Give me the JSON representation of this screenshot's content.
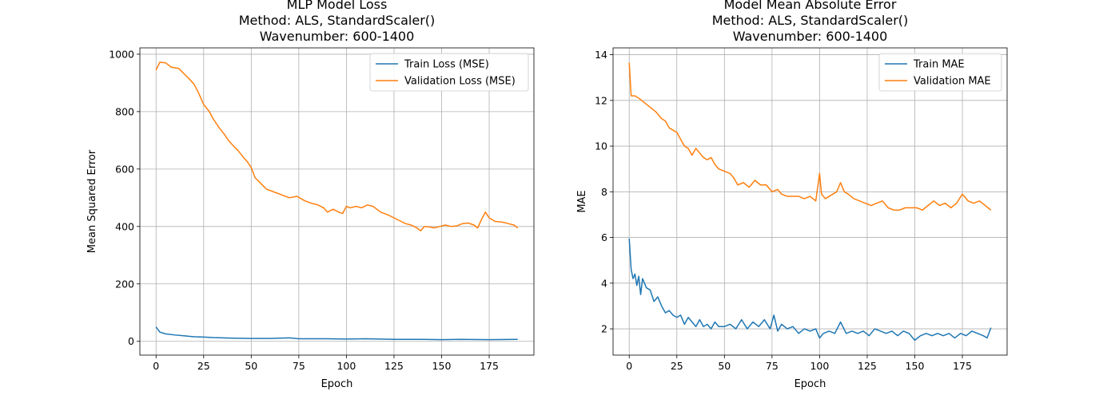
{
  "colors": {
    "train": "#1f77b4",
    "validation": "#ff7f0e",
    "grid": "#b0b0b0"
  },
  "chart_data": [
    {
      "type": "line",
      "title_lines": [
        "MLP Model Loss",
        "Method: ALS, StandardScaler()",
        "Wavenumber: 600-1400"
      ],
      "xlabel": "Epoch",
      "ylabel": "Mean Squared Error",
      "xlim": [
        -8.5,
        198.5
      ],
      "ylim": [
        -48,
        1022
      ],
      "xticks": [
        0,
        25,
        50,
        75,
        100,
        125,
        150,
        175
      ],
      "yticks": [
        0,
        200,
        400,
        600,
        800,
        1000
      ],
      "grid": true,
      "legend_position": "top-right",
      "series": [
        {
          "name": "Train Loss (MSE)",
          "key": "train",
          "points": [
            [
              0,
              50
            ],
            [
              2,
              32
            ],
            [
              5,
              26
            ],
            [
              10,
              22
            ],
            [
              15,
              19
            ],
            [
              20,
              16
            ],
            [
              25,
              15
            ],
            [
              30,
              13
            ],
            [
              40,
              11
            ],
            [
              50,
              10
            ],
            [
              60,
              10
            ],
            [
              70,
              12
            ],
            [
              75,
              9
            ],
            [
              90,
              9
            ],
            [
              100,
              8
            ],
            [
              110,
              9
            ],
            [
              125,
              7
            ],
            [
              140,
              7
            ],
            [
              150,
              6
            ],
            [
              160,
              7
            ],
            [
              175,
              6
            ],
            [
              190,
              7
            ]
          ]
        },
        {
          "name": "Validation Loss (MSE)",
          "key": "validation",
          "points": [
            [
              0,
              945
            ],
            [
              2,
              972
            ],
            [
              5,
              970
            ],
            [
              8,
              955
            ],
            [
              12,
              950
            ],
            [
              15,
              930
            ],
            [
              18,
              910
            ],
            [
              20,
              895
            ],
            [
              22,
              870
            ],
            [
              25,
              825
            ],
            [
              28,
              800
            ],
            [
              30,
              775
            ],
            [
              33,
              745
            ],
            [
              36,
              720
            ],
            [
              38,
              700
            ],
            [
              40,
              685
            ],
            [
              43,
              665
            ],
            [
              46,
              640
            ],
            [
              48,
              625
            ],
            [
              50,
              605
            ],
            [
              52,
              570
            ],
            [
              55,
              550
            ],
            [
              58,
              530
            ],
            [
              62,
              520
            ],
            [
              66,
              510
            ],
            [
              70,
              500
            ],
            [
              74,
              505
            ],
            [
              78,
              490
            ],
            [
              82,
              480
            ],
            [
              85,
              475
            ],
            [
              88,
              465
            ],
            [
              90,
              450
            ],
            [
              93,
              460
            ],
            [
              96,
              450
            ],
            [
              98,
              445
            ],
            [
              100,
              470
            ],
            [
              102,
              465
            ],
            [
              105,
              470
            ],
            [
              108,
              465
            ],
            [
              111,
              475
            ],
            [
              114,
              470
            ],
            [
              116,
              460
            ],
            [
              118,
              450
            ],
            [
              122,
              440
            ],
            [
              125,
              430
            ],
            [
              128,
              420
            ],
            [
              131,
              410
            ],
            [
              134,
              405
            ],
            [
              137,
              395
            ],
            [
              139,
              385
            ],
            [
              141,
              400
            ],
            [
              144,
              398
            ],
            [
              146,
              395
            ],
            [
              149,
              400
            ],
            [
              152,
              405
            ],
            [
              155,
              400
            ],
            [
              158,
              402
            ],
            [
              161,
              410
            ],
            [
              164,
              412
            ],
            [
              167,
              405
            ],
            [
              169,
              395
            ],
            [
              171,
              425
            ],
            [
              173,
              450
            ],
            [
              175,
              430
            ],
            [
              178,
              418
            ],
            [
              182,
              415
            ],
            [
              185,
              410
            ],
            [
              188,
              405
            ],
            [
              190,
              395
            ]
          ]
        }
      ]
    },
    {
      "type": "line",
      "title_lines": [
        "Model Mean Absolute Error",
        "Method: ALS, StandardScaler()",
        "Wavenumber: 600-1400"
      ],
      "xlabel": "Epoch",
      "ylabel": "MAE",
      "xlim": [
        -8.5,
        198.5
      ],
      "ylim": [
        0.85,
        14.3
      ],
      "xticks": [
        0,
        25,
        50,
        75,
        100,
        125,
        150,
        175
      ],
      "yticks": [
        2,
        4,
        6,
        8,
        10,
        12,
        14
      ],
      "grid": true,
      "legend_position": "top-right",
      "series": [
        {
          "name": "Train MAE",
          "key": "train",
          "points": [
            [
              0,
              5.95
            ],
            [
              1,
              4.6
            ],
            [
              2,
              4.2
            ],
            [
              3,
              4.4
            ],
            [
              4,
              3.9
            ],
            [
              5,
              4.3
            ],
            [
              6,
              3.5
            ],
            [
              7,
              4.2
            ],
            [
              9,
              3.8
            ],
            [
              11,
              3.7
            ],
            [
              13,
              3.2
            ],
            [
              15,
              3.4
            ],
            [
              17,
              3.0
            ],
            [
              19,
              2.7
            ],
            [
              21,
              2.8
            ],
            [
              23,
              2.6
            ],
            [
              25,
              2.5
            ],
            [
              27,
              2.6
            ],
            [
              29,
              2.2
            ],
            [
              31,
              2.5
            ],
            [
              33,
              2.3
            ],
            [
              35,
              2.1
            ],
            [
              37,
              2.4
            ],
            [
              39,
              2.1
            ],
            [
              41,
              2.2
            ],
            [
              43,
              2.0
            ],
            [
              45,
              2.3
            ],
            [
              47,
              2.1
            ],
            [
              50,
              2.1
            ],
            [
              53,
              2.2
            ],
            [
              56,
              2.0
            ],
            [
              59,
              2.4
            ],
            [
              62,
              2.0
            ],
            [
              65,
              2.3
            ],
            [
              68,
              2.1
            ],
            [
              71,
              2.4
            ],
            [
              74,
              2.0
            ],
            [
              76,
              2.6
            ],
            [
              78,
              1.9
            ],
            [
              80,
              2.2
            ],
            [
              83,
              2.0
            ],
            [
              86,
              2.1
            ],
            [
              89,
              1.8
            ],
            [
              92,
              2.0
            ],
            [
              95,
              1.9
            ],
            [
              98,
              2.0
            ],
            [
              100,
              1.6
            ],
            [
              102,
              1.8
            ],
            [
              105,
              1.9
            ],
            [
              108,
              1.8
            ],
            [
              111,
              2.3
            ],
            [
              114,
              1.8
            ],
            [
              117,
              1.9
            ],
            [
              120,
              1.8
            ],
            [
              123,
              1.9
            ],
            [
              126,
              1.7
            ],
            [
              129,
              2.0
            ],
            [
              132,
              1.9
            ],
            [
              135,
              1.8
            ],
            [
              138,
              1.9
            ],
            [
              141,
              1.7
            ],
            [
              144,
              1.9
            ],
            [
              147,
              1.8
            ],
            [
              150,
              1.5
            ],
            [
              153,
              1.7
            ],
            [
              156,
              1.8
            ],
            [
              159,
              1.7
            ],
            [
              162,
              1.8
            ],
            [
              165,
              1.7
            ],
            [
              168,
              1.8
            ],
            [
              171,
              1.6
            ],
            [
              174,
              1.8
            ],
            [
              177,
              1.7
            ],
            [
              180,
              1.9
            ],
            [
              183,
              1.8
            ],
            [
              186,
              1.7
            ],
            [
              188,
              1.6
            ],
            [
              190,
              2.05
            ]
          ]
        },
        {
          "name": "Validation MAE",
          "key": "validation",
          "points": [
            [
              0,
              13.65
            ],
            [
              1,
              12.2
            ],
            [
              3,
              12.2
            ],
            [
              5,
              12.1
            ],
            [
              8,
              11.9
            ],
            [
              11,
              11.7
            ],
            [
              14,
              11.5
            ],
            [
              17,
              11.2
            ],
            [
              19,
              11.1
            ],
            [
              21,
              10.8
            ],
            [
              23,
              10.7
            ],
            [
              25,
              10.6
            ],
            [
              27,
              10.3
            ],
            [
              29,
              10.0
            ],
            [
              31,
              9.9
            ],
            [
              33,
              9.6
            ],
            [
              35,
              9.9
            ],
            [
              37,
              9.7
            ],
            [
              39,
              9.5
            ],
            [
              41,
              9.4
            ],
            [
              43,
              9.5
            ],
            [
              45,
              9.2
            ],
            [
              47,
              9.0
            ],
            [
              50,
              8.9
            ],
            [
              53,
              8.8
            ],
            [
              55,
              8.6
            ],
            [
              57,
              8.3
            ],
            [
              60,
              8.4
            ],
            [
              63,
              8.2
            ],
            [
              66,
              8.5
            ],
            [
              69,
              8.3
            ],
            [
              72,
              8.3
            ],
            [
              75,
              8.0
            ],
            [
              78,
              8.1
            ],
            [
              80,
              7.9
            ],
            [
              83,
              7.8
            ],
            [
              86,
              7.8
            ],
            [
              89,
              7.8
            ],
            [
              92,
              7.7
            ],
            [
              95,
              7.8
            ],
            [
              98,
              7.6
            ],
            [
              100,
              8.8
            ],
            [
              101,
              7.9
            ],
            [
              103,
              7.7
            ],
            [
              105,
              7.8
            ],
            [
              107,
              7.9
            ],
            [
              109,
              8.0
            ],
            [
              111,
              8.4
            ],
            [
              113,
              8.0
            ],
            [
              115,
              7.9
            ],
            [
              118,
              7.7
            ],
            [
              121,
              7.6
            ],
            [
              124,
              7.5
            ],
            [
              127,
              7.4
            ],
            [
              130,
              7.5
            ],
            [
              133,
              7.6
            ],
            [
              136,
              7.3
            ],
            [
              139,
              7.2
            ],
            [
              142,
              7.2
            ],
            [
              145,
              7.3
            ],
            [
              148,
              7.3
            ],
            [
              151,
              7.3
            ],
            [
              154,
              7.2
            ],
            [
              157,
              7.4
            ],
            [
              160,
              7.6
            ],
            [
              163,
              7.4
            ],
            [
              166,
              7.5
            ],
            [
              169,
              7.3
            ],
            [
              172,
              7.5
            ],
            [
              175,
              7.9
            ],
            [
              178,
              7.6
            ],
            [
              181,
              7.5
            ],
            [
              184,
              7.6
            ],
            [
              187,
              7.4
            ],
            [
              190,
              7.2
            ]
          ]
        }
      ]
    }
  ]
}
